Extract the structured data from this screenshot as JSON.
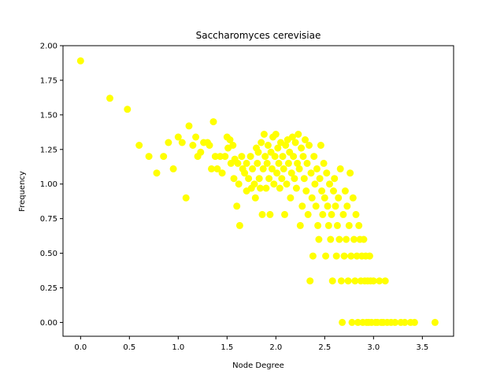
{
  "chart_data": {
    "type": "scatter",
    "title": "Saccharomyces cerevisiae",
    "xlabel": "Node Degree",
    "ylabel": "Frequency",
    "xlim": [
      -0.18,
      3.82
    ],
    "ylim": [
      -0.1,
      2.0
    ],
    "xticks": [
      "0.0",
      "0.5",
      "1.0",
      "1.5",
      "2.0",
      "2.5",
      "3.0",
      "3.5"
    ],
    "yticks": [
      "0.00",
      "0.25",
      "0.50",
      "0.75",
      "1.00",
      "1.25",
      "1.50",
      "1.75",
      "2.00"
    ],
    "grid": false,
    "marker_color": "#ffff00",
    "series": [
      {
        "points": [
          [
            0.0,
            1.89
          ],
          [
            0.3,
            1.62
          ],
          [
            0.48,
            1.54
          ],
          [
            0.6,
            1.28
          ],
          [
            0.7,
            1.2
          ],
          [
            0.78,
            1.08
          ],
          [
            0.85,
            1.2
          ],
          [
            0.9,
            1.3
          ],
          [
            0.95,
            1.11
          ],
          [
            1.0,
            1.34
          ],
          [
            1.04,
            1.3
          ],
          [
            1.08,
            0.9
          ],
          [
            1.11,
            1.42
          ],
          [
            1.15,
            1.28
          ],
          [
            1.18,
            1.34
          ],
          [
            1.2,
            1.2
          ],
          [
            1.23,
            1.23
          ],
          [
            1.26,
            1.3
          ],
          [
            1.3,
            1.3
          ],
          [
            1.32,
            1.28
          ],
          [
            1.34,
            1.11
          ],
          [
            1.36,
            1.45
          ],
          [
            1.38,
            1.2
          ],
          [
            1.4,
            1.11
          ],
          [
            1.43,
            1.2
          ],
          [
            1.45,
            1.08
          ],
          [
            1.48,
            1.2
          ],
          [
            1.5,
            1.34
          ],
          [
            1.51,
            1.26
          ],
          [
            1.53,
            1.32
          ],
          [
            1.54,
            1.15
          ],
          [
            1.56,
            1.28
          ],
          [
            1.57,
            1.04
          ],
          [
            1.58,
            1.18
          ],
          [
            1.6,
            0.84
          ],
          [
            1.61,
            1.15
          ],
          [
            1.62,
            1.0
          ],
          [
            1.63,
            0.7
          ],
          [
            1.65,
            1.2
          ],
          [
            1.66,
            1.11
          ],
          [
            1.68,
            1.08
          ],
          [
            1.7,
            1.15
          ],
          [
            1.7,
            0.95
          ],
          [
            1.72,
            1.04
          ],
          [
            1.74,
            1.2
          ],
          [
            1.75,
            0.97
          ],
          [
            1.76,
            1.11
          ],
          [
            1.78,
            1.0
          ],
          [
            1.79,
            0.9
          ],
          [
            1.8,
            1.26
          ],
          [
            1.81,
            1.15
          ],
          [
            1.82,
            1.23
          ],
          [
            1.83,
            1.04
          ],
          [
            1.84,
            0.97
          ],
          [
            1.85,
            1.3
          ],
          [
            1.86,
            0.78
          ],
          [
            1.87,
            1.11
          ],
          [
            1.88,
            1.36
          ],
          [
            1.89,
            1.2
          ],
          [
            1.9,
            0.97
          ],
          [
            1.91,
            1.15
          ],
          [
            1.92,
            1.28
          ],
          [
            1.93,
            1.04
          ],
          [
            1.94,
            0.78
          ],
          [
            1.95,
            1.23
          ],
          [
            1.96,
            1.11
          ],
          [
            1.97,
            1.34
          ],
          [
            1.98,
            1.0
          ],
          [
            1.99,
            1.2
          ],
          [
            2.0,
            1.36
          ],
          [
            2.01,
            1.08
          ],
          [
            2.02,
            1.26
          ],
          [
            2.03,
            1.15
          ],
          [
            2.04,
            0.97
          ],
          [
            2.05,
            1.3
          ],
          [
            2.06,
            1.04
          ],
          [
            2.07,
            1.2
          ],
          [
            2.08,
            1.11
          ],
          [
            2.09,
            0.78
          ],
          [
            2.1,
            1.28
          ],
          [
            2.11,
            1.0
          ],
          [
            2.12,
            1.32
          ],
          [
            2.13,
            1.15
          ],
          [
            2.14,
            1.23
          ],
          [
            2.15,
            0.9
          ],
          [
            2.16,
            1.08
          ],
          [
            2.17,
            1.34
          ],
          [
            2.18,
            1.2
          ],
          [
            2.19,
            1.04
          ],
          [
            2.2,
            1.3
          ],
          [
            2.21,
            0.97
          ],
          [
            2.22,
            1.15
          ],
          [
            2.23,
            1.36
          ],
          [
            2.24,
            1.11
          ],
          [
            2.25,
            0.7
          ],
          [
            2.26,
            1.26
          ],
          [
            2.27,
            0.84
          ],
          [
            2.28,
            1.2
          ],
          [
            2.29,
            1.04
          ],
          [
            2.3,
            1.32
          ],
          [
            2.31,
            0.95
          ],
          [
            2.32,
            1.15
          ],
          [
            2.33,
            0.78
          ],
          [
            2.34,
            1.28
          ],
          [
            2.35,
            0.3
          ],
          [
            2.36,
            1.08
          ],
          [
            2.37,
            0.9
          ],
          [
            2.38,
            0.48
          ],
          [
            2.39,
            1.2
          ],
          [
            2.4,
            1.0
          ],
          [
            2.41,
            0.84
          ],
          [
            2.42,
            1.11
          ],
          [
            2.43,
            0.7
          ],
          [
            2.44,
            0.6
          ],
          [
            2.45,
            1.04
          ],
          [
            2.46,
            1.28
          ],
          [
            2.47,
            0.95
          ],
          [
            2.48,
            0.78
          ],
          [
            2.49,
            1.15
          ],
          [
            2.5,
            0.9
          ],
          [
            2.51,
            0.48
          ],
          [
            2.52,
            1.08
          ],
          [
            2.53,
            0.84
          ],
          [
            2.54,
            0.7
          ],
          [
            2.55,
            1.0
          ],
          [
            2.56,
            0.6
          ],
          [
            2.57,
            0.78
          ],
          [
            2.58,
            0.3
          ],
          [
            2.59,
            0.95
          ],
          [
            2.6,
            1.04
          ],
          [
            2.61,
            0.84
          ],
          [
            2.62,
            0.48
          ],
          [
            2.63,
            0.7
          ],
          [
            2.64,
            0.9
          ],
          [
            2.65,
            0.6
          ],
          [
            2.66,
            1.11
          ],
          [
            2.67,
            0.3
          ],
          [
            2.68,
            0.0
          ],
          [
            2.69,
            0.78
          ],
          [
            2.7,
            0.48
          ],
          [
            2.71,
            0.95
          ],
          [
            2.72,
            0.6
          ],
          [
            2.73,
            0.84
          ],
          [
            2.74,
            0.3
          ],
          [
            2.75,
            0.7
          ],
          [
            2.76,
            1.08
          ],
          [
            2.77,
            0.48
          ],
          [
            2.78,
            0.0
          ],
          [
            2.79,
            0.9
          ],
          [
            2.8,
            0.6
          ],
          [
            2.81,
            0.3
          ],
          [
            2.82,
            0.78
          ],
          [
            2.83,
            0.48
          ],
          [
            2.84,
            0.0
          ],
          [
            2.85,
            0.7
          ],
          [
            2.86,
            0.6
          ],
          [
            2.87,
            0.3
          ],
          [
            2.88,
            0.48
          ],
          [
            2.89,
            0.0
          ],
          [
            2.9,
            0.6
          ],
          [
            2.91,
            0.3
          ],
          [
            2.92,
            0.48
          ],
          [
            2.93,
            0.0
          ],
          [
            2.94,
            0.3
          ],
          [
            2.95,
            0.0
          ],
          [
            2.96,
            0.48
          ],
          [
            2.97,
            0.3
          ],
          [
            2.98,
            0.0
          ],
          [
            3.0,
            0.3
          ],
          [
            3.02,
            0.0
          ],
          [
            3.04,
            0.0
          ],
          [
            3.06,
            0.3
          ],
          [
            3.08,
            0.0
          ],
          [
            3.1,
            0.0
          ],
          [
            3.12,
            0.3
          ],
          [
            3.14,
            0.0
          ],
          [
            3.18,
            0.0
          ],
          [
            3.22,
            0.0
          ],
          [
            3.28,
            0.0
          ],
          [
            3.32,
            0.0
          ],
          [
            3.38,
            0.0
          ],
          [
            3.42,
            0.0
          ],
          [
            3.63,
            0.0
          ]
        ]
      }
    ]
  }
}
